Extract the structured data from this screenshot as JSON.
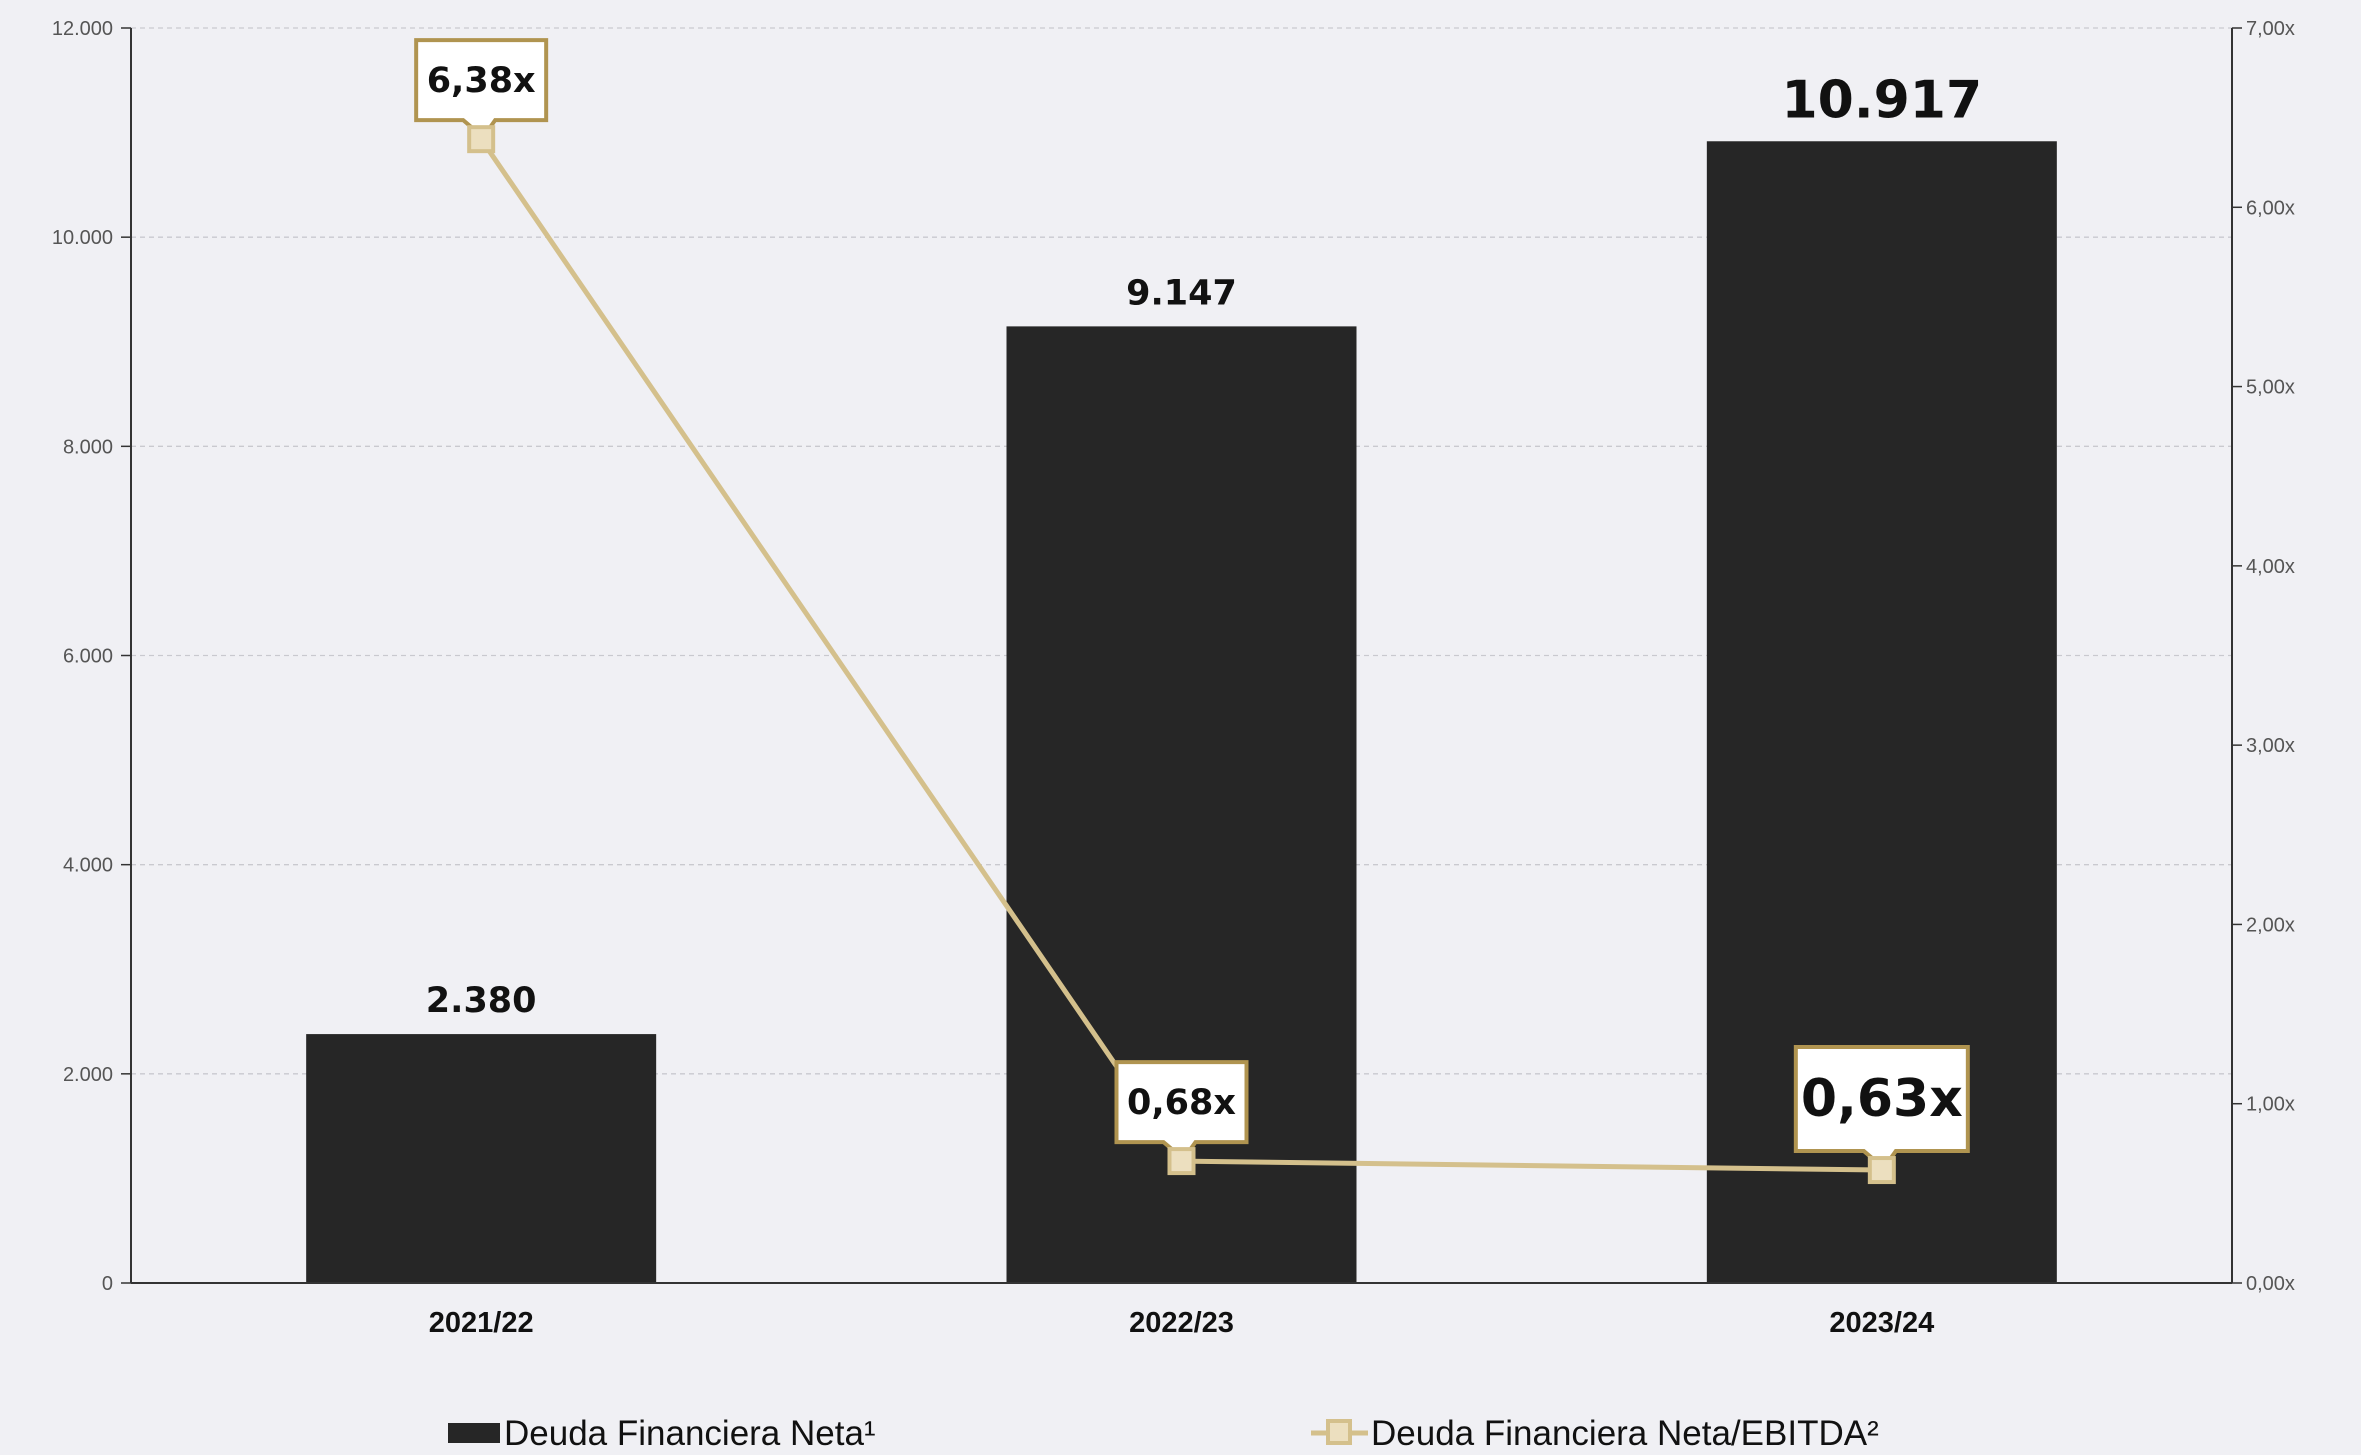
{
  "chart_data": {
    "type": "bar",
    "categories": [
      "2021/22",
      "2022/23",
      "2023/24"
    ],
    "series": [
      {
        "name": "Deuda Financiera Neta¹",
        "type": "bar",
        "axis": "left",
        "color": "#262626",
        "values": [
          2380,
          9147,
          10917
        ],
        "labels": [
          "2.380",
          "9.147",
          "10.917"
        ]
      },
      {
        "name": "Deuda Financiera Neta/EBITDA²",
        "type": "line",
        "axis": "right",
        "color": "#d4c08c",
        "callout_border_color": "#b09450",
        "values": [
          6.38,
          0.68,
          0.63
        ],
        "labels": [
          "6,38x",
          "0,68x",
          "0,63x"
        ]
      }
    ],
    "y_left": {
      "ylim": [
        0,
        12000
      ],
      "ticks": [
        0,
        2000,
        4000,
        6000,
        8000,
        10000,
        12000
      ],
      "tick_labels": [
        "0",
        "2.000",
        "4.000",
        "6.000",
        "8.000",
        "10.000",
        "12.000"
      ]
    },
    "y_right": {
      "ylim": [
        0,
        7
      ],
      "ticks": [
        0,
        1,
        2,
        3,
        4,
        5,
        6,
        7
      ],
      "tick_labels": [
        "0,00x",
        "1,00x",
        "2,00x",
        "3,00x",
        "4,00x",
        "5,00x",
        "6,00x",
        "7,00x"
      ]
    },
    "title": "",
    "xlabel": "",
    "ylabel": "",
    "grid": true,
    "legend_position": "bottom",
    "highlight_last": true
  }
}
